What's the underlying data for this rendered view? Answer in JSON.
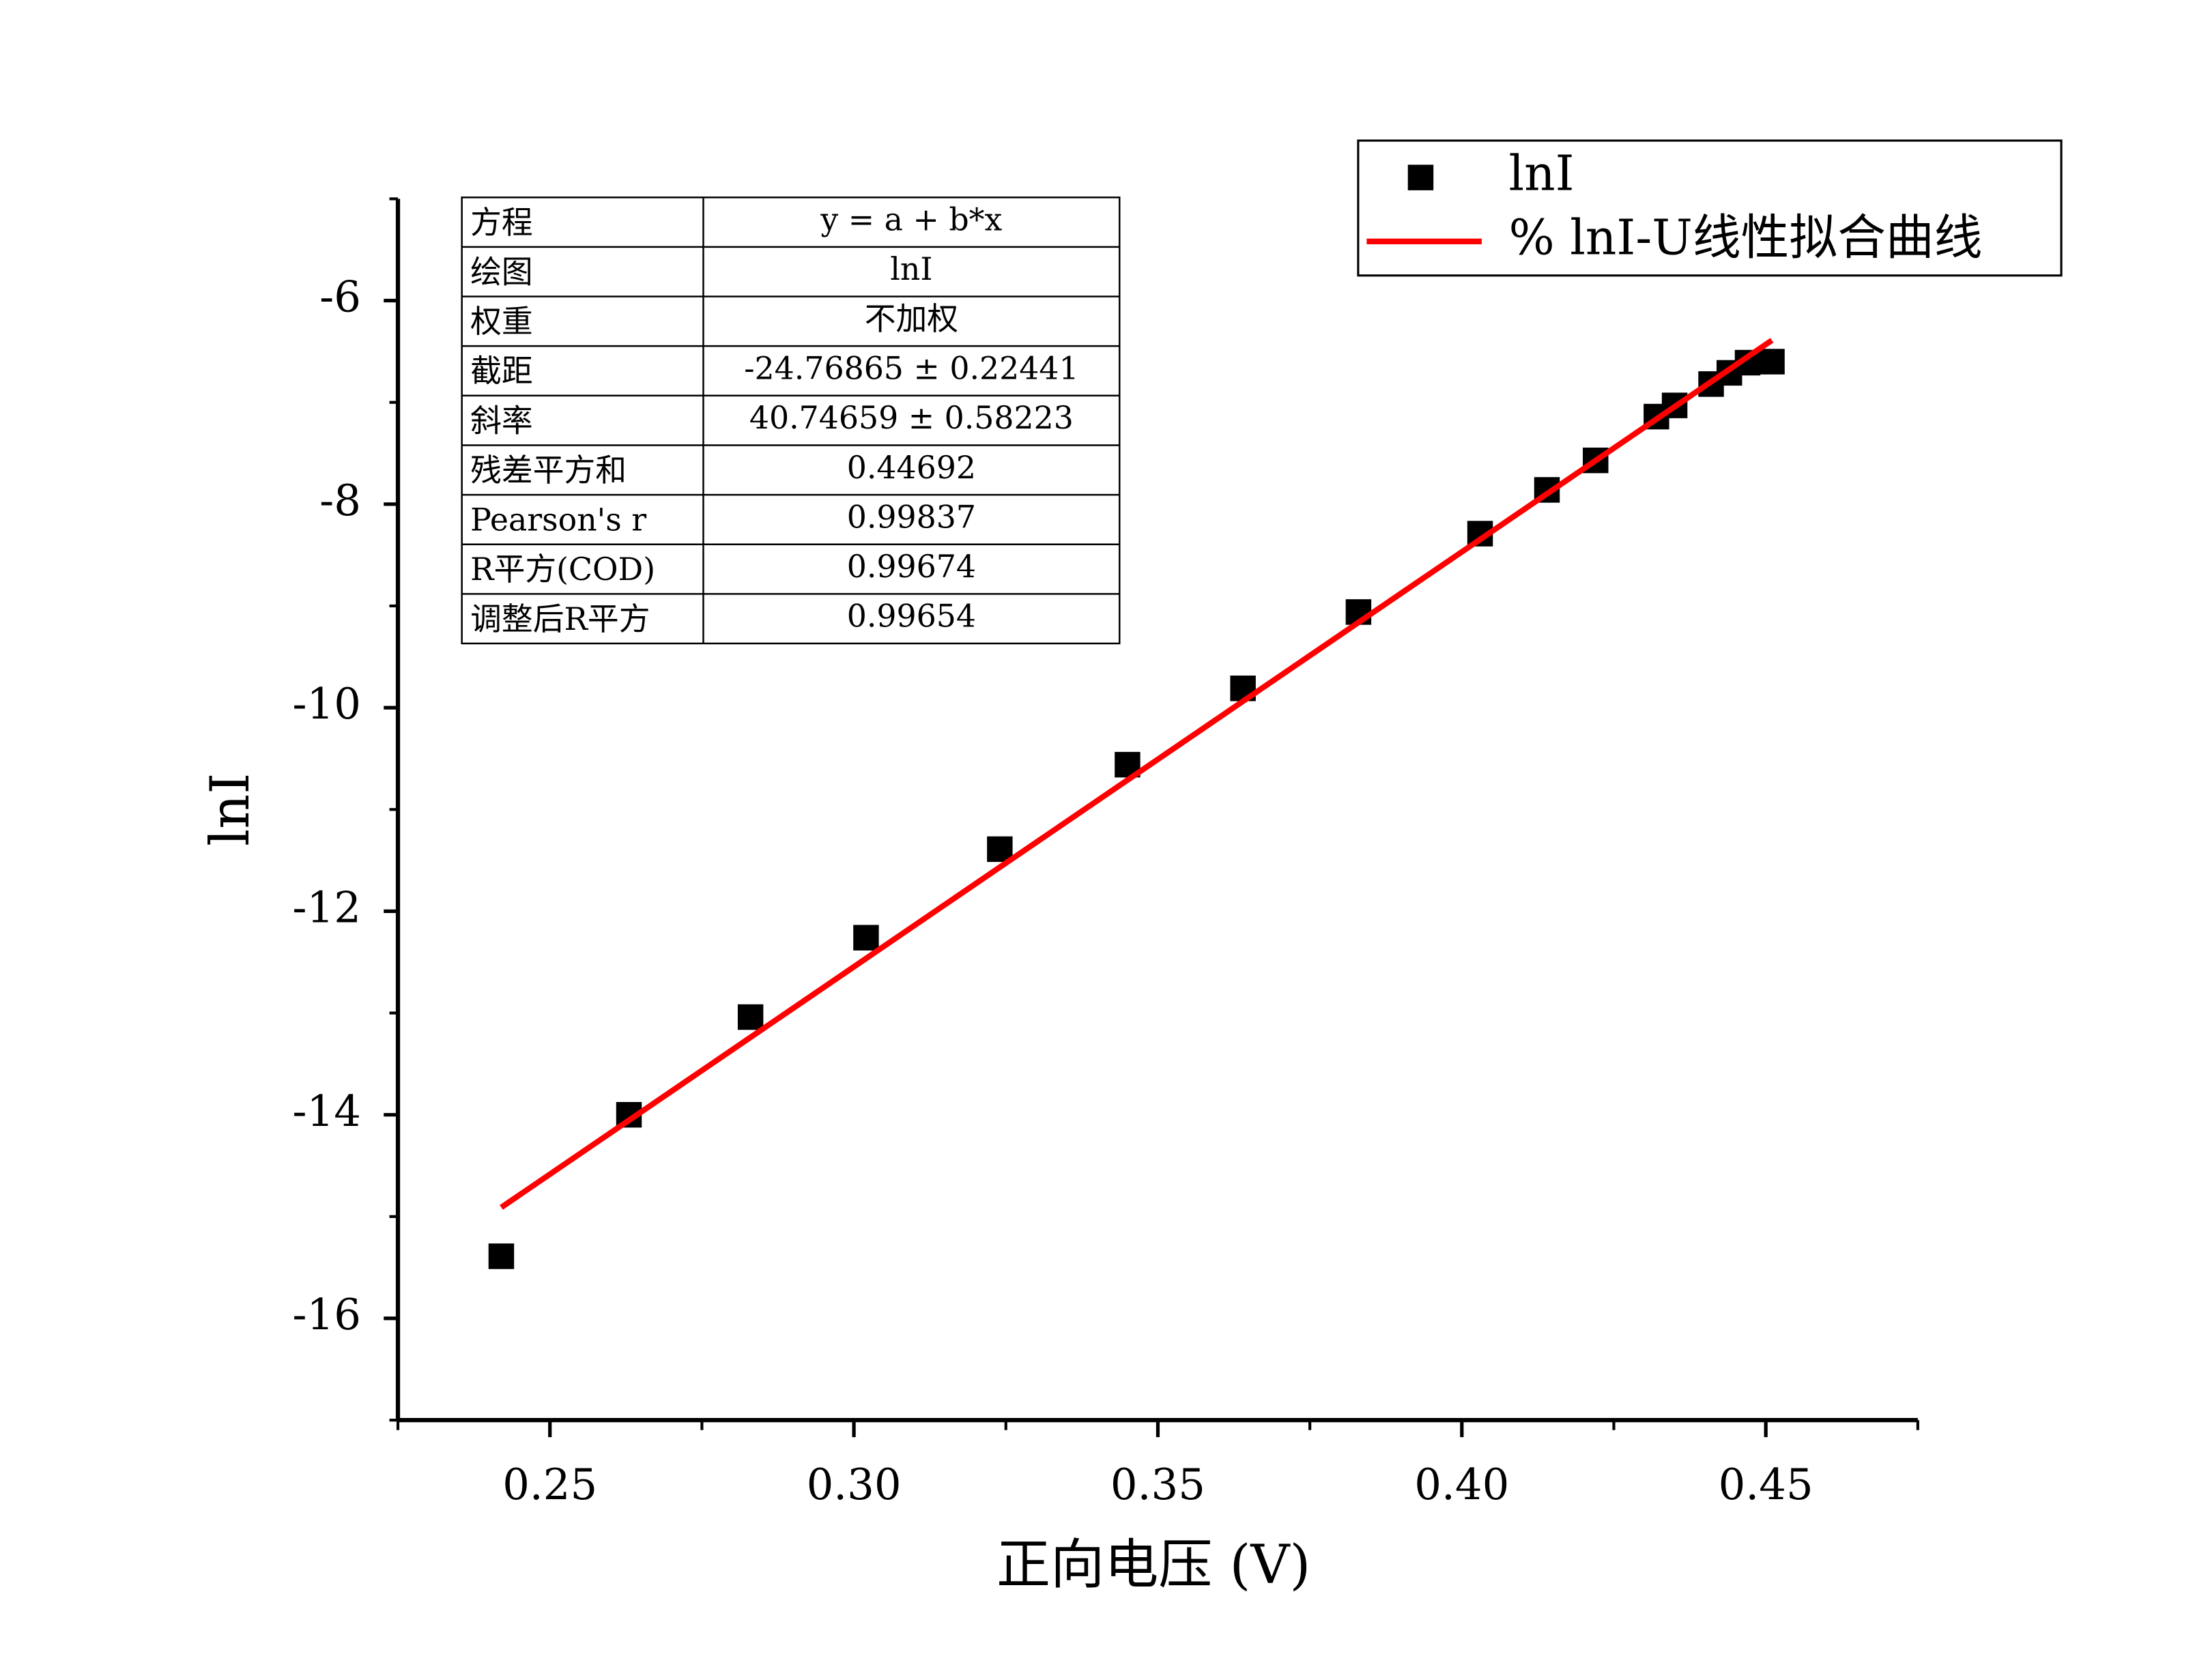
{
  "chart_data": {
    "type": "scatter",
    "x_label": "正向电压 (V)",
    "y_label": "lnI",
    "xlim": [
      0.225,
      0.475
    ],
    "xticks": [
      {
        "value": 0.25,
        "label": "0.25"
      },
      {
        "value": 0.3,
        "label": "0.30"
      },
      {
        "value": 0.35,
        "label": "0.35"
      },
      {
        "value": 0.4,
        "label": "0.40"
      },
      {
        "value": 0.45,
        "label": "0.45"
      }
    ],
    "xminor": [
      0.225,
      0.275,
      0.325,
      0.375,
      0.425,
      0.475
    ],
    "ylim": [
      -17,
      -5
    ],
    "yticks": [
      -16,
      -14,
      -12,
      -10,
      -8,
      -6
    ],
    "yminor": [
      -17,
      -15,
      -13,
      -11,
      -9,
      -7,
      -5
    ],
    "grid": false,
    "legend": "top-right",
    "series": [
      {
        "name": "lnI",
        "type": "scatter",
        "color": "#000000",
        "x": [
          0.242,
          0.263,
          0.283,
          0.302,
          0.324,
          0.345,
          0.364,
          0.383,
          0.403,
          0.414,
          0.422,
          0.432,
          0.435,
          0.441,
          0.444,
          0.447,
          0.451
        ],
        "values": [
          -15.39,
          -14.0,
          -13.04,
          -12.26,
          -11.39,
          -10.56,
          -9.81,
          -9.06,
          -8.29,
          -7.86,
          -7.57,
          -7.14,
          -7.03,
          -6.82,
          -6.71,
          -6.61,
          -6.6
        ]
      },
      {
        "name": "% lnI-U线性拟合曲线",
        "type": "line",
        "color": "#ff0000",
        "x": [
          0.242,
          0.451
        ],
        "values": [
          -14.91,
          -6.39
        ]
      }
    ],
    "table": {
      "rows": [
        [
          "方程",
          "y = a + b*x"
        ],
        [
          "绘图",
          "lnI"
        ],
        [
          "权重",
          "不加权"
        ],
        [
          "截距",
          "-24.76865 ± 0.22441"
        ],
        [
          "斜率",
          "40.74659 ± 0.58223"
        ],
        [
          "残差平方和",
          "0.44692"
        ],
        [
          "Pearson's r",
          "0.99837"
        ],
        [
          "R平方(COD)",
          "0.99674"
        ],
        [
          "调整后R平方",
          "0.99654"
        ]
      ]
    }
  }
}
